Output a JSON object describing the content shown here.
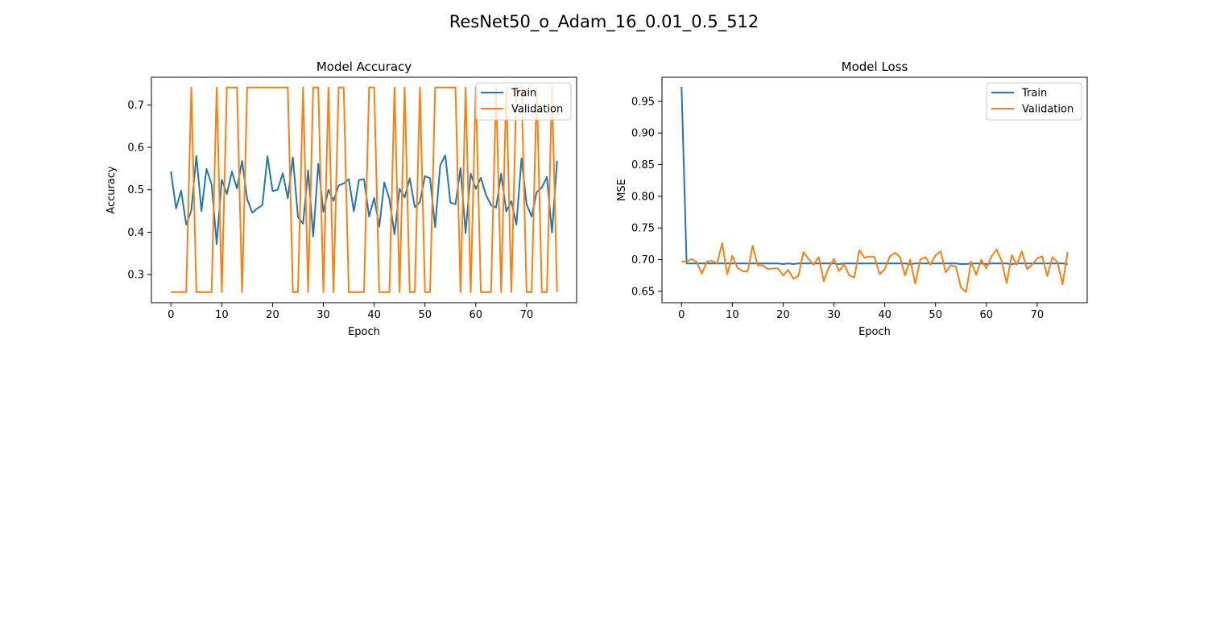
{
  "figure": {
    "suptitle": "ResNet50_o_Adam_16_0.01_0.5_512"
  },
  "colors": {
    "train": "#1f77b4",
    "validation": "#ff7f0e",
    "axes": "#000000",
    "legend_border": "#cccccc"
  },
  "chart_data": [
    {
      "type": "line",
      "title": "Model Accuracy",
      "xlabel": "Epoch",
      "ylabel": "Accuracy",
      "xlim": [
        -3.85,
        79.85
      ],
      "ylim": [
        0.234,
        0.765
      ],
      "xticks": [
        0,
        10,
        20,
        30,
        40,
        50,
        60,
        70
      ],
      "yticks": [
        0.3,
        0.4,
        0.5,
        0.6,
        0.7
      ],
      "ytick_labels": [
        "0.3",
        "0.4",
        "0.5",
        "0.6",
        "0.7"
      ],
      "grid": false,
      "legend_position": "top-right",
      "series": [
        {
          "name": "Train",
          "color_key": "train",
          "values": [
            0.543,
            0.456,
            0.498,
            0.418,
            0.451,
            0.58,
            0.45,
            0.549,
            0.513,
            0.372,
            0.524,
            0.49,
            0.543,
            0.503,
            0.568,
            0.478,
            0.446,
            0.456,
            0.464,
            0.579,
            0.497,
            0.5,
            0.539,
            0.48,
            0.576,
            0.436,
            0.42,
            0.546,
            0.39,
            0.561,
            0.448,
            0.5,
            0.474,
            0.51,
            0.515,
            0.525,
            0.449,
            0.523,
            0.525,
            0.437,
            0.481,
            0.413,
            0.517,
            0.478,
            0.395,
            0.502,
            0.482,
            0.527,
            0.459,
            0.471,
            0.532,
            0.527,
            0.412,
            0.558,
            0.581,
            0.47,
            0.466,
            0.551,
            0.398,
            0.538,
            0.502,
            0.528,
            0.488,
            0.464,
            0.458,
            0.538,
            0.449,
            0.473,
            0.418,
            0.574,
            0.466,
            0.437,
            0.495,
            0.505,
            0.53,
            0.399,
            0.568
          ]
        },
        {
          "name": "Validation",
          "color_key": "validation",
          "values": [
            0.259,
            0.259,
            0.259,
            0.259,
            0.741,
            0.259,
            0.259,
            0.259,
            0.259,
            0.741,
            0.259,
            0.741,
            0.741,
            0.741,
            0.259,
            0.741,
            0.741,
            0.741,
            0.741,
            0.741,
            0.741,
            0.741,
            0.741,
            0.741,
            0.259,
            0.259,
            0.741,
            0.259,
            0.741,
            0.741,
            0.259,
            0.741,
            0.259,
            0.741,
            0.741,
            0.259,
            0.259,
            0.259,
            0.259,
            0.741,
            0.741,
            0.259,
            0.259,
            0.259,
            0.741,
            0.259,
            0.741,
            0.259,
            0.259,
            0.741,
            0.259,
            0.259,
            0.741,
            0.741,
            0.741,
            0.741,
            0.741,
            0.259,
            0.741,
            0.259,
            0.741,
            0.259,
            0.259,
            0.259,
            0.741,
            0.259,
            0.741,
            0.259,
            0.741,
            0.741,
            0.259,
            0.259,
            0.741,
            0.259,
            0.259,
            0.741,
            0.259
          ]
        }
      ]
    },
    {
      "type": "line",
      "title": "Model Loss",
      "xlabel": "Epoch",
      "ylabel": "MSE",
      "xlim": [
        -3.85,
        79.85
      ],
      "ylim": [
        0.632,
        0.988
      ],
      "xticks": [
        0,
        10,
        20,
        30,
        40,
        50,
        60,
        70
      ],
      "yticks": [
        0.65,
        0.7,
        0.75,
        0.8,
        0.85,
        0.9,
        0.95
      ],
      "ytick_labels": [
        "0.65",
        "0.70",
        "0.75",
        "0.80",
        "0.85",
        "0.90",
        "0.95"
      ],
      "grid": false,
      "legend_position": "top-right",
      "series": [
        {
          "name": "Train",
          "color_key": "train",
          "values": [
            0.973,
            0.694,
            0.694,
            0.694,
            0.694,
            0.694,
            0.694,
            0.694,
            0.694,
            0.694,
            0.694,
            0.694,
            0.694,
            0.694,
            0.694,
            0.694,
            0.694,
            0.694,
            0.694,
            0.694,
            0.693,
            0.694,
            0.693,
            0.694,
            0.694,
            0.694,
            0.694,
            0.694,
            0.694,
            0.694,
            0.694,
            0.693,
            0.694,
            0.694,
            0.694,
            0.694,
            0.694,
            0.694,
            0.694,
            0.694,
            0.694,
            0.694,
            0.694,
            0.694,
            0.694,
            0.693,
            0.694,
            0.694,
            0.694,
            0.694,
            0.694,
            0.694,
            0.694,
            0.694,
            0.694,
            0.693,
            0.693,
            0.694,
            0.694,
            0.694,
            0.693,
            0.694,
            0.694,
            0.694,
            0.694,
            0.693,
            0.694,
            0.694,
            0.694,
            0.694,
            0.694,
            0.694,
            0.694,
            0.694,
            0.694,
            0.694,
            0.693
          ]
        },
        {
          "name": "Validation",
          "color_key": "validation",
          "values": [
            0.697,
            0.697,
            0.701,
            0.696,
            0.678,
            0.697,
            0.698,
            0.694,
            0.726,
            0.677,
            0.706,
            0.687,
            0.682,
            0.681,
            0.722,
            0.691,
            0.691,
            0.685,
            0.686,
            0.686,
            0.675,
            0.684,
            0.67,
            0.674,
            0.712,
            0.701,
            0.692,
            0.704,
            0.666,
            0.688,
            0.701,
            0.682,
            0.693,
            0.675,
            0.672,
            0.715,
            0.703,
            0.705,
            0.704,
            0.677,
            0.685,
            0.705,
            0.711,
            0.704,
            0.675,
            0.7,
            0.662,
            0.7,
            0.704,
            0.692,
            0.707,
            0.713,
            0.68,
            0.691,
            0.689,
            0.656,
            0.649,
            0.697,
            0.676,
            0.7,
            0.686,
            0.705,
            0.716,
            0.698,
            0.663,
            0.707,
            0.692,
            0.713,
            0.685,
            0.692,
            0.702,
            0.705,
            0.674,
            0.704,
            0.696,
            0.661,
            0.712
          ]
        }
      ]
    }
  ]
}
